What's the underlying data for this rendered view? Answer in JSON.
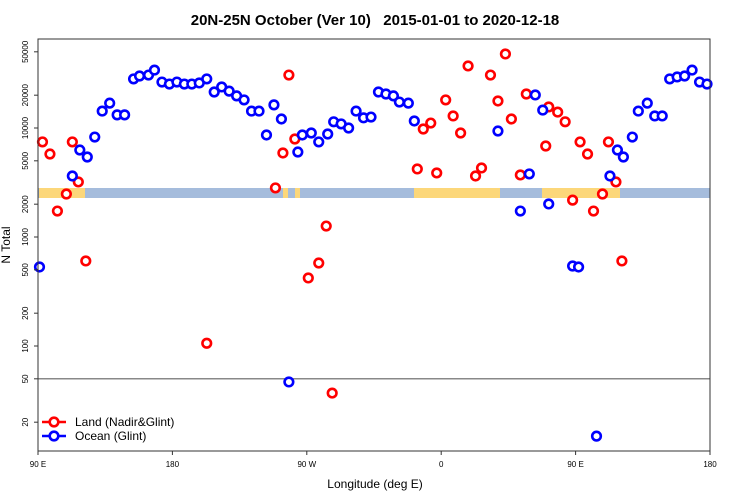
{
  "chart_data": {
    "type": "scatter",
    "title": "20N-25N October (Ver 10)   2015-01-01 to 2020-12-18",
    "xlabel": "Longitude (deg E)",
    "ylabel": "N Total",
    "x_units": "degrees east, continuous from 90 E through 180 and 0 to 180 (90 to 540)",
    "xlim": [
      90,
      540
    ],
    "x_ticks": [
      {
        "value": 90,
        "label": "90 E"
      },
      {
        "value": 180,
        "label": "180"
      },
      {
        "value": 270,
        "label": "90 W"
      },
      {
        "value": 360,
        "label": "0"
      },
      {
        "value": 450,
        "label": "90 E"
      },
      {
        "value": 540,
        "label": "180"
      }
    ],
    "y_scale": "log",
    "ylim": [
      11,
      70000
    ],
    "y_ticks": [
      {
        "value": 20,
        "label": "20"
      },
      {
        "value": 50,
        "label": "50"
      },
      {
        "value": 100,
        "label": "100"
      },
      {
        "value": 200,
        "label": "200"
      },
      {
        "value": 500,
        "label": "500"
      },
      {
        "value": 1000,
        "label": "1000"
      },
      {
        "value": 2000,
        "label": "2000"
      },
      {
        "value": 5000,
        "label": "5000"
      },
      {
        "value": 10000,
        "label": "10000"
      },
      {
        "value": 20000,
        "label": "20000"
      },
      {
        "value": 50000,
        "label": "50000"
      }
    ],
    "reference_line": {
      "y": 50,
      "color": "#888888"
    },
    "grid": false,
    "legend": {
      "placement": "bottom-left"
    },
    "land_ocean_strip": {
      "land_color": "#fcd77a",
      "ocean_color": "#a5bcdc"
    },
    "series": [
      {
        "name": "Land (Nadir&Glint)",
        "color": "#ff0000",
        "points": [
          [
            93,
            7450
          ],
          [
            98,
            5770
          ],
          [
            103,
            1730
          ],
          [
            109,
            2480
          ],
          [
            113,
            7450
          ],
          [
            117,
            3200
          ],
          [
            122,
            603
          ],
          [
            203,
            106
          ],
          [
            249,
            2820
          ],
          [
            254,
            5900
          ],
          [
            258,
            30600
          ],
          [
            262,
            7930
          ],
          [
            271,
            421
          ],
          [
            278,
            577
          ],
          [
            283,
            1260
          ],
          [
            287,
            37
          ],
          [
            344,
            4210
          ],
          [
            348,
            9790
          ],
          [
            353,
            11100
          ],
          [
            357,
            3870
          ],
          [
            363,
            18100
          ],
          [
            368,
            12900
          ],
          [
            373,
            9000
          ],
          [
            378,
            37100
          ],
          [
            383,
            3630
          ],
          [
            387,
            4300
          ],
          [
            393,
            30600
          ],
          [
            398,
            17700
          ],
          [
            403,
            47800
          ],
          [
            407,
            12100
          ],
          [
            413,
            3710
          ],
          [
            417,
            20500
          ],
          [
            430,
            6840
          ],
          [
            432,
            15600
          ],
          [
            438,
            14000
          ],
          [
            443,
            11400
          ],
          [
            448,
            2180
          ],
          [
            453,
            7450
          ],
          [
            458,
            5770
          ],
          [
            462,
            1730
          ],
          [
            468,
            2480
          ],
          [
            472,
            7450
          ],
          [
            477,
            3200
          ],
          [
            481,
            603
          ]
        ]
      },
      {
        "name": "Ocean (Glint)",
        "color": "#0000ff",
        "points": [
          [
            91,
            531
          ],
          [
            113,
            3630
          ],
          [
            118,
            6280
          ],
          [
            123,
            5420
          ],
          [
            128,
            8260
          ],
          [
            133,
            14300
          ],
          [
            138,
            16900
          ],
          [
            143,
            13200
          ],
          [
            148,
            13200
          ],
          [
            154,
            28200
          ],
          [
            158,
            30000
          ],
          [
            164,
            30600
          ],
          [
            168,
            34000
          ],
          [
            173,
            26400
          ],
          [
            178,
            25300
          ],
          [
            183,
            26400
          ],
          [
            188,
            25300
          ],
          [
            193,
            25300
          ],
          [
            198,
            25900
          ],
          [
            203,
            28200
          ],
          [
            208,
            21400
          ],
          [
            213,
            23800
          ],
          [
            218,
            21800
          ],
          [
            223,
            19700
          ],
          [
            228,
            18100
          ],
          [
            233,
            14300
          ],
          [
            238,
            14300
          ],
          [
            243,
            8630
          ],
          [
            248,
            16300
          ],
          [
            253,
            12100
          ],
          [
            258,
            46.8
          ],
          [
            264,
            6020
          ],
          [
            267,
            8630
          ],
          [
            273,
            9000
          ],
          [
            278,
            7450
          ],
          [
            284,
            8810
          ],
          [
            288,
            11400
          ],
          [
            293,
            10900
          ],
          [
            298,
            10000
          ],
          [
            303,
            14300
          ],
          [
            308,
            12400
          ],
          [
            313,
            12600
          ],
          [
            318,
            21400
          ],
          [
            323,
            20500
          ],
          [
            328,
            19700
          ],
          [
            332,
            17300
          ],
          [
            338,
            16900
          ],
          [
            342,
            11600
          ],
          [
            398,
            9380
          ],
          [
            413,
            1730
          ],
          [
            419,
            3790
          ],
          [
            423,
            20100
          ],
          [
            428,
            14600
          ],
          [
            432,
            2010
          ],
          [
            448,
            542
          ],
          [
            452,
            531
          ],
          [
            464,
            14.9
          ],
          [
            473,
            3630
          ],
          [
            478,
            6280
          ],
          [
            482,
            5420
          ],
          [
            488,
            8260
          ],
          [
            492,
            14300
          ],
          [
            498,
            16900
          ],
          [
            503,
            12900
          ],
          [
            508,
            12900
          ],
          [
            513,
            28200
          ],
          [
            518,
            29400
          ],
          [
            523,
            30000
          ],
          [
            528,
            34000
          ],
          [
            533,
            26400
          ],
          [
            538,
            25300
          ]
        ]
      }
    ]
  }
}
